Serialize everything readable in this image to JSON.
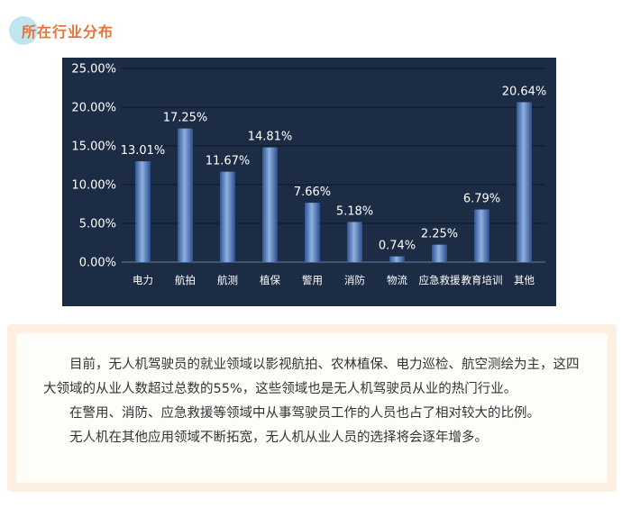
{
  "section": {
    "title": "所在行业分布"
  },
  "colors": {
    "accent": "#e8733a",
    "chart_bg": "#1c2c44",
    "bar_top": "#8fb0e0",
    "bar_bottom": "#2e5595",
    "box_bg": "#fdf0e2"
  },
  "chart_data": {
    "type": "bar",
    "categories": [
      "电力",
      "航拍",
      "航测",
      "植保",
      "警用",
      "消防",
      "物流",
      "应急救援",
      "教育培训",
      "其他"
    ],
    "values": [
      13.01,
      17.25,
      11.67,
      14.81,
      7.66,
      5.18,
      0.74,
      2.25,
      6.79,
      20.64
    ],
    "value_labels": [
      "13.01%",
      "17.25%",
      "11.67%",
      "14.81%",
      "7.66%",
      "5.18%",
      "0.74%",
      "2.25%",
      "6.79%",
      "20.64%"
    ],
    "y_ticks": [
      "0.00%",
      "5.00%",
      "10.00%",
      "15.00%",
      "20.00%",
      "25.00%"
    ],
    "ylim": [
      0,
      25
    ],
    "grid": true,
    "title": "",
    "xlabel": "",
    "ylabel": ""
  },
  "description": {
    "paragraphs": [
      "目前，无人机驾驶员的就业领域以影视航拍、农林植保、电力巡检、航空测绘为主，这四大领域的从业人数超过总数的55%，这些领域也是无人机驾驶员从业的热门行业。",
      "在警用、消防、应急救援等领域中从事驾驶员工作的人员也占了相对较大的比例。",
      "无人机在其他应用领域不断拓宽，无人机从业人员的选择将会逐年增多。"
    ]
  }
}
